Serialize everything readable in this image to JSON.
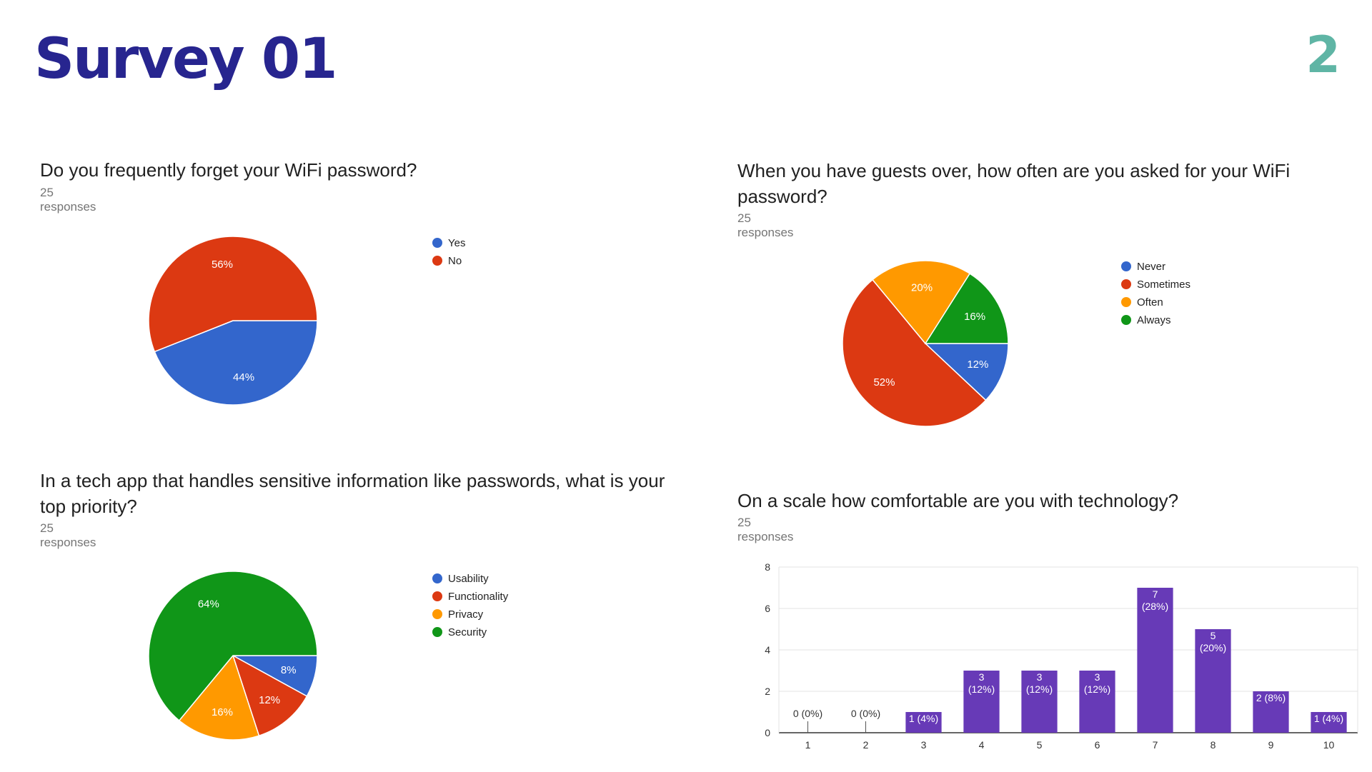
{
  "slide": {
    "title": "Survey 01",
    "page_number": "2"
  },
  "colors": {
    "blue": "#3366cc",
    "red": "#dc3912",
    "orange": "#ff9900",
    "green": "#109618",
    "purple": "#673ab7"
  },
  "chart_data": [
    {
      "type": "pie",
      "title": "Do you frequently forget your WiFi password?",
      "subtitle": "25 responses",
      "legend_position": "right",
      "slices": [
        {
          "label": "Yes",
          "value": 44,
          "display": "44%",
          "color": "#3366cc"
        },
        {
          "label": "No",
          "value": 56,
          "display": "56%",
          "color": "#dc3912"
        }
      ]
    },
    {
      "type": "pie",
      "title": "When you have guests over, how often are you asked for your WiFi password?",
      "subtitle": "25 responses",
      "legend_position": "right",
      "slices": [
        {
          "label": "Never",
          "value": 12,
          "display": "12%",
          "color": "#3366cc"
        },
        {
          "label": "Sometimes",
          "value": 52,
          "display": "52%",
          "color": "#dc3912"
        },
        {
          "label": "Often",
          "value": 20,
          "display": "20%",
          "color": "#ff9900"
        },
        {
          "label": "Always",
          "value": 16,
          "display": "16%",
          "color": "#109618"
        }
      ]
    },
    {
      "type": "pie",
      "title": "In a tech app that handles sensitive information like passwords, what is your top priority?",
      "subtitle": "25 responses",
      "legend_position": "right",
      "slices": [
        {
          "label": "Usability",
          "value": 8,
          "display": "8%",
          "color": "#3366cc"
        },
        {
          "label": "Functionality",
          "value": 12,
          "display": "12%",
          "color": "#dc3912"
        },
        {
          "label": "Privacy",
          "value": 16,
          "display": "16%",
          "color": "#ff9900"
        },
        {
          "label": "Security",
          "value": 64,
          "display": "64%",
          "color": "#109618"
        }
      ]
    },
    {
      "type": "bar",
      "title": "On a scale how comfortable are you with technology?",
      "subtitle": "25 responses",
      "categories": [
        "1",
        "2",
        "3",
        "4",
        "5",
        "6",
        "7",
        "8",
        "9",
        "10"
      ],
      "values": [
        0,
        0,
        1,
        3,
        3,
        3,
        7,
        5,
        2,
        1
      ],
      "labels": [
        "0 (0%)",
        "0 (0%)",
        "1 (4%)",
        "3\n(12%)",
        "3\n(12%)",
        "3\n(12%)",
        "7\n(28%)",
        "5\n(20%)",
        "2 (8%)",
        "1 (4%)"
      ],
      "yticks": [
        "0",
        "2",
        "4",
        "6",
        "8"
      ],
      "ylim": [
        0,
        8
      ],
      "grid": true,
      "color": "#673ab7"
    }
  ]
}
